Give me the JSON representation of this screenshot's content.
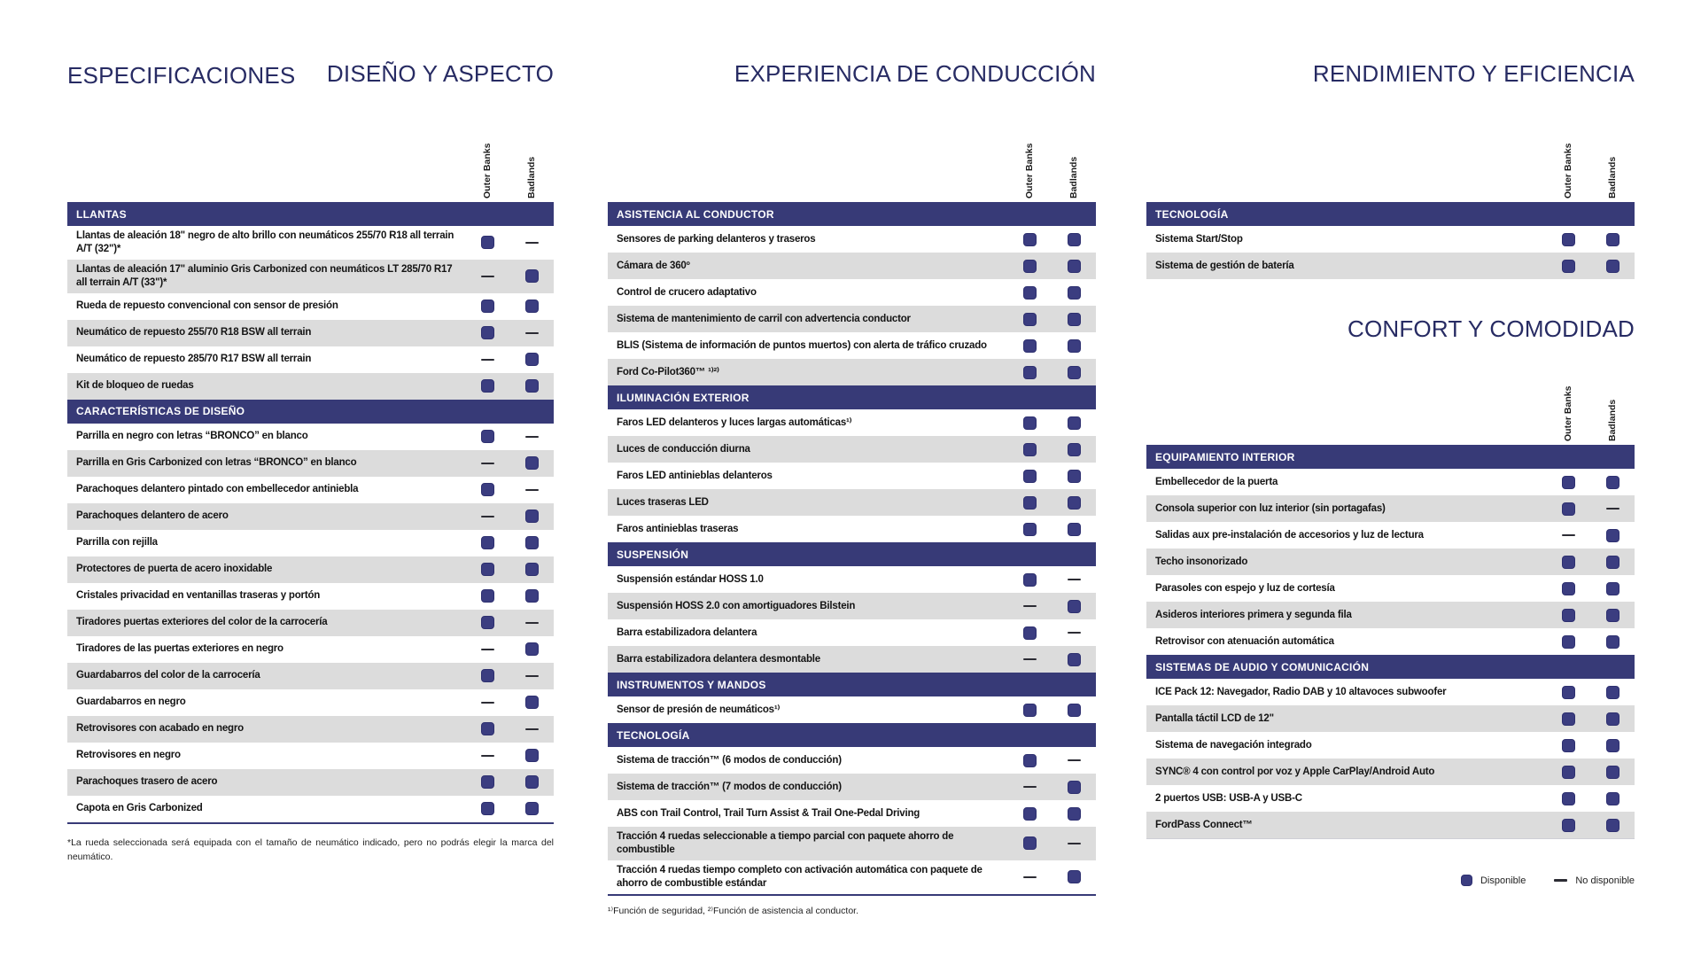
{
  "page": {
    "title": "ESPECIFICACIONES"
  },
  "colors": {
    "header_band": "#373a77",
    "available_square": "#3b3d80",
    "row_alt": "#dcdcdc",
    "title_navy": "#272b63"
  },
  "legend": {
    "available": "Disponible",
    "not_available": "No disponible",
    "available_icon": "square-icon",
    "not_available_icon": "dash-icon"
  },
  "columns": [
    {
      "title": "DISEÑO Y ASPECTO",
      "footnote": "*La rueda seleccionada será equipada con el tamaño de neumático indicado, pero no podrás elegir la marca del neumático.",
      "tables": [
        {
          "col_headers": [
            "Outer Banks",
            "Badlands"
          ],
          "sections": [
            {
              "header": "LLANTAS",
              "rows": [
                {
                  "label": "Llantas de aleación 18\" negro de alto brillo con neumáticos 255/70 R18 all terrain A/T (32\")*",
                  "ob": true,
                  "bl": false
                },
                {
                  "label": "Llantas de aleación 17\" aluminio Gris Carbonized con neumáticos LT 285/70 R17 all terrain A/T (33\")*",
                  "ob": false,
                  "bl": true
                },
                {
                  "label": "Rueda de repuesto convencional con sensor de presión",
                  "ob": true,
                  "bl": true
                },
                {
                  "label": "Neumático de repuesto 255/70 R18 BSW all terrain",
                  "ob": true,
                  "bl": false
                },
                {
                  "label": "Neumático de repuesto 285/70 R17 BSW all terrain",
                  "ob": false,
                  "bl": true
                },
                {
                  "label": "Kit de bloqueo de ruedas",
                  "ob": true,
                  "bl": true
                }
              ]
            },
            {
              "header": "CARACTERÍSTICAS DE DISEÑO",
              "rows": [
                {
                  "label": "Parrilla en negro con letras “BRONCO” en blanco",
                  "ob": true,
                  "bl": false
                },
                {
                  "label": "Parrilla en Gris Carbonized con letras “BRONCO” en blanco",
                  "ob": false,
                  "bl": true
                },
                {
                  "label": "Parachoques delantero pintado con embellecedor antiniebla",
                  "ob": true,
                  "bl": false
                },
                {
                  "label": "Parachoques delantero de acero",
                  "ob": false,
                  "bl": true
                },
                {
                  "label": "Parrilla con rejilla",
                  "ob": true,
                  "bl": true
                },
                {
                  "label": "Protectores de puerta de acero inoxidable",
                  "ob": true,
                  "bl": true
                },
                {
                  "label": "Cristales privacidad en ventanillas traseras y portón",
                  "ob": true,
                  "bl": true
                },
                {
                  "label": "Tiradores puertas exteriores del color de la carrocería",
                  "ob": true,
                  "bl": false
                },
                {
                  "label": "Tiradores de las puertas exteriores en negro",
                  "ob": false,
                  "bl": true
                },
                {
                  "label": "Guardabarros del color de la carrocería",
                  "ob": true,
                  "bl": false
                },
                {
                  "label": "Guardabarros en negro",
                  "ob": false,
                  "bl": true
                },
                {
                  "label": "Retrovisores con acabado en negro",
                  "ob": true,
                  "bl": false
                },
                {
                  "label": "Retrovisores en negro",
                  "ob": false,
                  "bl": true
                },
                {
                  "label": "Parachoques trasero de acero",
                  "ob": true,
                  "bl": true
                },
                {
                  "label": "Capota en Gris Carbonized",
                  "ob": true,
                  "bl": true
                }
              ]
            }
          ]
        }
      ]
    },
    {
      "title": "EXPERIENCIA DE CONDUCCIÓN",
      "footnote": "¹⁾Función de seguridad, ²⁾Función de asistencia al conductor.",
      "tables": [
        {
          "col_headers": [
            "Outer Banks",
            "Badlands"
          ],
          "sections": [
            {
              "header": "ASISTENCIA AL CONDUCTOR",
              "rows": [
                {
                  "label": "Sensores de parking delanteros y traseros",
                  "ob": true,
                  "bl": true
                },
                {
                  "label": "Cámara de 360º",
                  "ob": true,
                  "bl": true
                },
                {
                  "label": "Control de crucero adaptativo",
                  "ob": true,
                  "bl": true
                },
                {
                  "label": "Sistema de mantenimiento de carril con advertencia conductor",
                  "ob": true,
                  "bl": true
                },
                {
                  "label": "BLIS (Sistema de información de puntos muertos) con alerta de tráfico cruzado",
                  "ob": true,
                  "bl": true
                },
                {
                  "label": "Ford Co-Pilot360™ ¹⁾²⁾",
                  "ob": true,
                  "bl": true
                }
              ]
            },
            {
              "header": "ILUMINACIÓN EXTERIOR",
              "rows": [
                {
                  "label": "Faros LED delanteros y luces largas automáticas¹⁾",
                  "ob": true,
                  "bl": true
                },
                {
                  "label": "Luces de conducción diurna",
                  "ob": true,
                  "bl": true
                },
                {
                  "label": "Faros LED antinieblas delanteros",
                  "ob": true,
                  "bl": true
                },
                {
                  "label": "Luces traseras LED",
                  "ob": true,
                  "bl": true
                },
                {
                  "label": "Faros antinieblas traseras",
                  "ob": true,
                  "bl": true
                }
              ]
            },
            {
              "header": "SUSPENSIÓN",
              "rows": [
                {
                  "label": "Suspensión estándar HOSS 1.0",
                  "ob": true,
                  "bl": false
                },
                {
                  "label": "Suspensión HOSS 2.0 con amortiguadores Bilstein",
                  "ob": false,
                  "bl": true
                },
                {
                  "label": "Barra estabilizadora delantera",
                  "ob": true,
                  "bl": false
                },
                {
                  "label": "Barra estabilizadora delantera desmontable",
                  "ob": false,
                  "bl": true
                }
              ]
            },
            {
              "header": "INSTRUMENTOS Y MANDOS",
              "rows": [
                {
                  "label": "Sensor de presión de neumáticos¹⁾",
                  "ob": true,
                  "bl": true
                }
              ]
            },
            {
              "header": "TECNOLOGÍA",
              "rows": [
                {
                  "label": "Sistema de tracción™ (6 modos de conducción)",
                  "ob": true,
                  "bl": false
                },
                {
                  "label": "Sistema de tracción™ (7 modos de conducción)",
                  "ob": false,
                  "bl": true
                },
                {
                  "label": "ABS con Trail Control, Trail Turn Assist & Trail One-Pedal Driving",
                  "ob": true,
                  "bl": true
                },
                {
                  "label": "Tracción 4 ruedas seleccionable a tiempo parcial con paquete ahorro de combustible",
                  "ob": true,
                  "bl": false
                },
                {
                  "label": "Tracción 4 ruedas tiempo completo con activación automática con paquete de ahorro de combustible estándar",
                  "ob": false,
                  "bl": true
                }
              ]
            }
          ]
        }
      ]
    },
    {
      "title": "RENDIMIENTO Y EFICIENCIA",
      "subtitle": "CONFORT Y COMODIDAD",
      "tables": [
        {
          "col_headers": [
            "Outer Banks",
            "Badlands"
          ],
          "sections": [
            {
              "header": "TECNOLOGÍA",
              "rows": [
                {
                  "label": "Sistema Start/Stop",
                  "ob": true,
                  "bl": true
                },
                {
                  "label": "Sistema de gestión de batería",
                  "ob": true,
                  "bl": true
                }
              ]
            }
          ]
        },
        {
          "col_headers": [
            "Outer Banks",
            "Badlands"
          ],
          "sections": [
            {
              "header": "EQUIPAMIENTO INTERIOR",
              "rows": [
                {
                  "label": "Embellecedor de la puerta",
                  "ob": true,
                  "bl": true
                },
                {
                  "label": "Consola superior con luz interior (sin portagafas)",
                  "ob": true,
                  "bl": false
                },
                {
                  "label": "Salidas aux pre-instalación de accesorios y luz de lectura",
                  "ob": false,
                  "bl": true
                },
                {
                  "label": "Techo insonorizado",
                  "ob": true,
                  "bl": true
                },
                {
                  "label": "Parasoles con espejo y luz de cortesía",
                  "ob": true,
                  "bl": true
                },
                {
                  "label": "Asideros interiores primera y segunda fila",
                  "ob": true,
                  "bl": true
                },
                {
                  "label": "Retrovisor con atenuación automática",
                  "ob": true,
                  "bl": true
                }
              ]
            },
            {
              "header": "SISTEMAS DE AUDIO Y COMUNICACIÓN",
              "rows": [
                {
                  "label": "ICE Pack 12: Navegador, Radio DAB y 10 altavoces subwoofer",
                  "ob": true,
                  "bl": true
                },
                {
                  "label": "Pantalla táctil LCD de 12\"",
                  "ob": true,
                  "bl": true
                },
                {
                  "label": "Sistema de navegación integrado",
                  "ob": true,
                  "bl": true
                },
                {
                  "label": "SYNC® 4 con control por voz y Apple CarPlay/Android Auto",
                  "ob": true,
                  "bl": true
                },
                {
                  "label": "2 puertos USB: USB-A y USB-C",
                  "ob": true,
                  "bl": true
                },
                {
                  "label": "FordPass Connect™",
                  "ob": true,
                  "bl": true
                }
              ]
            }
          ]
        }
      ]
    }
  ]
}
